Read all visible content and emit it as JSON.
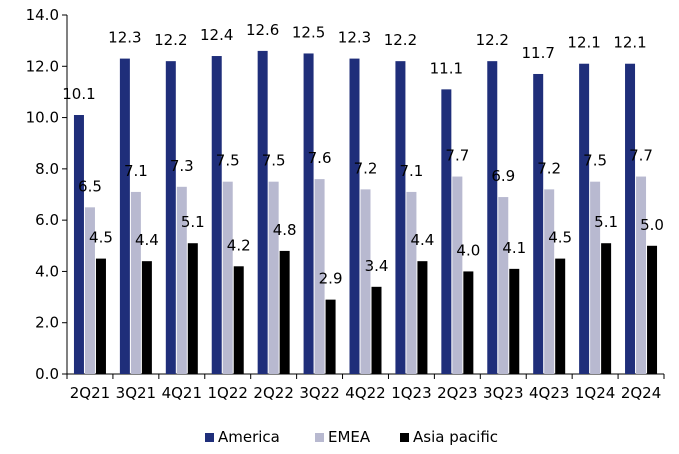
{
  "chart_data": {
    "type": "bar",
    "title": "",
    "xlabel": "",
    "ylabel": "",
    "ylim": [
      0,
      14
    ],
    "yticks": [
      "0.0",
      "2.0",
      "4.0",
      "6.0",
      "8.0",
      "10.0",
      "12.0",
      "14.0"
    ],
    "grid": false,
    "legend_position": "bottom",
    "categories": [
      "2Q21",
      "3Q21",
      "4Q21",
      "1Q22",
      "2Q22",
      "3Q22",
      "4Q22",
      "1Q23",
      "2Q23",
      "3Q23",
      "4Q23",
      "1Q24",
      "2Q24"
    ],
    "series": [
      {
        "name": "America",
        "color": "#1f2e7a",
        "values": [
          10.1,
          12.3,
          12.2,
          12.4,
          12.6,
          12.5,
          12.3,
          12.2,
          11.1,
          12.2,
          11.7,
          12.1,
          12.1
        ],
        "labels": [
          "10.1",
          "12.3",
          "12.2",
          "12.4",
          "12.6",
          "12.5",
          "12.3",
          "12.2",
          "11.1",
          "12.2",
          "11.7",
          "12.1",
          "12.1"
        ]
      },
      {
        "name": "EMEA",
        "color": "#b8b9d0",
        "values": [
          6.5,
          7.1,
          7.3,
          7.5,
          7.5,
          7.6,
          7.2,
          7.1,
          7.7,
          6.9,
          7.2,
          7.5,
          7.7
        ],
        "labels": [
          "6.5",
          "7.1",
          "7.3",
          "7.5",
          "7.5",
          "7.6",
          "7.2",
          "7.1",
          "7.7",
          "6.9",
          "7.2",
          "7.5",
          "7.7"
        ]
      },
      {
        "name": "Asia pacific",
        "color": "#000000",
        "values": [
          4.5,
          4.4,
          5.1,
          4.2,
          4.8,
          2.9,
          3.4,
          4.4,
          4.0,
          4.1,
          4.5,
          5.1,
          5.0
        ],
        "labels": [
          "4.5",
          "4.4",
          "5.1",
          "4.2",
          "4.8",
          "2.9",
          "3.4",
          "4.4",
          "4.0",
          "4.1",
          "4.5",
          "5.1",
          "5.0"
        ]
      }
    ]
  }
}
